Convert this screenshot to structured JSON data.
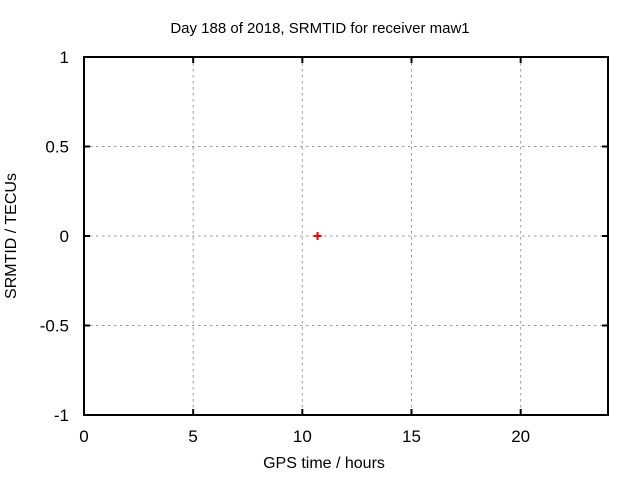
{
  "chart_data": {
    "type": "scatter",
    "title": "Day 188 of 2018, SRMTID for receiver maw1",
    "xlabel": "GPS time / hours",
    "ylabel": "SRMTID / TECUs",
    "xlim": [
      0,
      24
    ],
    "ylim": [
      -1,
      1
    ],
    "x_ticks": [
      0,
      5,
      10,
      15,
      20
    ],
    "x_tick_labels": [
      "0",
      "5",
      "10",
      "15",
      "20"
    ],
    "y_ticks": [
      -1,
      -0.5,
      0,
      0.5,
      1
    ],
    "y_tick_labels": [
      "-1",
      "-0.5",
      "0",
      "0.5",
      "1"
    ],
    "grid": true,
    "grid_style": "dashed",
    "legend": false,
    "series": [
      {
        "marker": "plus",
        "color": "#ff0000",
        "points": [
          [
            10.7,
            0.0
          ]
        ]
      }
    ],
    "colors": {
      "background": "#ffffff",
      "frame": "#000000",
      "grid": "#9c9c9c",
      "text": "#000000"
    }
  }
}
